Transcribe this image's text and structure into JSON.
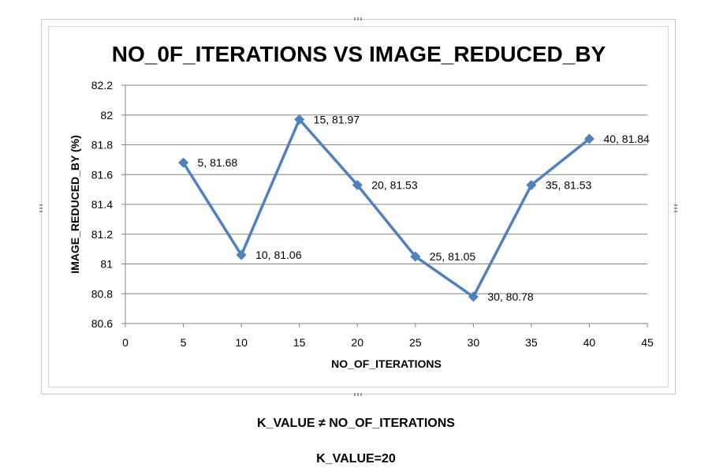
{
  "chart_data": {
    "type": "line",
    "title": "NO_0F_ITERATIONS VS IMAGE_REDUCED_BY",
    "xlabel": "NO_OF_ITERATIONS",
    "ylabel": "IMAGE_REDUCED_BY (%)",
    "xlim": [
      0,
      45
    ],
    "ylim": [
      80.6,
      82.2
    ],
    "xticks": [
      0,
      5,
      10,
      15,
      20,
      25,
      30,
      35,
      40,
      45
    ],
    "yticks": [
      80.6,
      80.8,
      81,
      81.2,
      81.4,
      81.6,
      81.8,
      82,
      82.2
    ],
    "ytick_labels": [
      "80.6",
      "80.8",
      "81",
      "81.2",
      "81.4",
      "81.6",
      "81.8",
      "82",
      "82.2"
    ],
    "grid": true,
    "legend": "none",
    "line_color": "#4F81BD",
    "x": [
      5,
      10,
      15,
      20,
      25,
      30,
      35,
      40
    ],
    "y": [
      81.68,
      81.06,
      81.97,
      81.53,
      81.05,
      80.78,
      81.53,
      81.84
    ],
    "data_labels": [
      "5, 81.68",
      "10, 81.06",
      "15, 81.97",
      "20, 81.53",
      "25, 81.05",
      "30, 80.78",
      "35, 81.53",
      "40, 81.84"
    ]
  },
  "captions": {
    "line1": "K_VALUE ≠ NO_OF_ITERATIONS",
    "line2": "K_VALUE=20"
  }
}
